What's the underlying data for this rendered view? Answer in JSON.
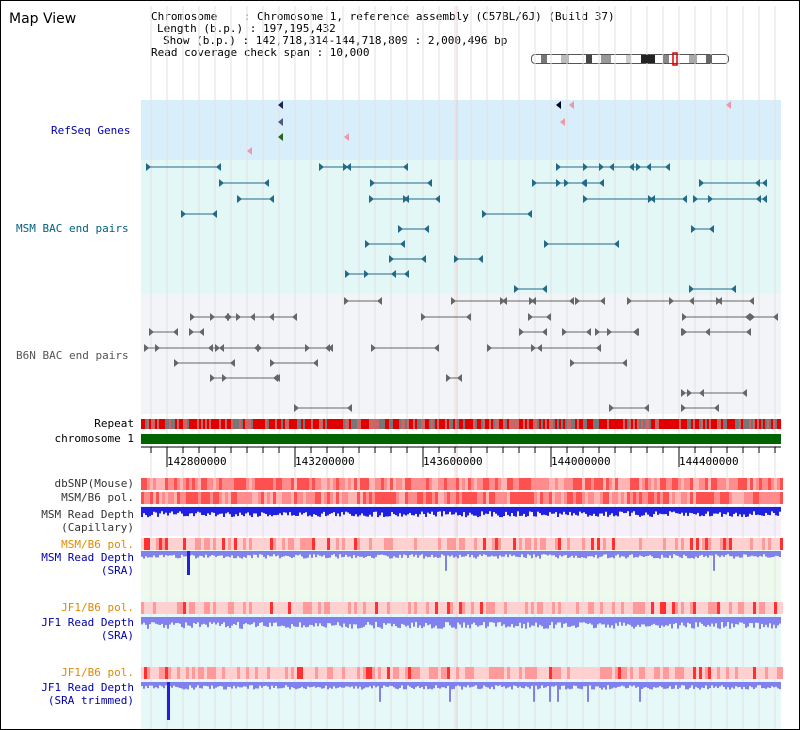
{
  "map_title": "Map View",
  "info": {
    "chromosome_line": "Chromosome    : Chromosome 1, reference assembly (C57BL/6J) (Build 37)",
    "length_line": "Length (b.p.) : 197,195,432",
    "show_line": "Show (b.p.) : 142,718,314-144,718,809 : 2,000,496 bp",
    "coverage_line": "Read coverage check span : 10,000"
  },
  "tracks": {
    "refseq": "RefSeq Genes",
    "msm_bac": "MSM BAC end pairs",
    "b6n_bac": "B6N BAC end pairs",
    "repeat": "Repeat",
    "chromosome": "chromosome 1",
    "dbsnp": "dbSNP(Mouse)",
    "msm_b6_pol_1": "MSM/B6 pol.",
    "msm_read_cap_1": "MSM Read Depth",
    "msm_read_cap_2": "(Capillary)",
    "msm_b6_pol_2": "MSM/B6 pol.",
    "msm_read_sra_1": "MSM Read Depth",
    "msm_read_sra_2": "(SRA)",
    "jf1_b6_pol_1": "JF1/B6 pol.",
    "jf1_read_sra_1": "JF1 Read Depth",
    "jf1_read_sra_2": "(SRA)",
    "jf1_b6_pol_2": "JF1/B6 pol.",
    "jf1_read_trim_1": "JF1 Read Depth",
    "jf1_read_trim_2": "(SRA trimmed)"
  },
  "ruler": {
    "ticks": [
      "142800000",
      "143200000",
      "143600000",
      "144000000",
      "144400000"
    ]
  },
  "colors": {
    "label_blue": "#0000aa",
    "label_teal": "#006080",
    "label_gray": "#555555",
    "label_orange": "#e08a00",
    "refseq_bg": "#d8eefa",
    "msm_bg": "#e4f7f7",
    "b6n_bg": "#f2f4f8",
    "chromosome_green": "#006400",
    "read_depth_blue": "#2020e0",
    "read_depth_light": "#8080ee"
  }
}
